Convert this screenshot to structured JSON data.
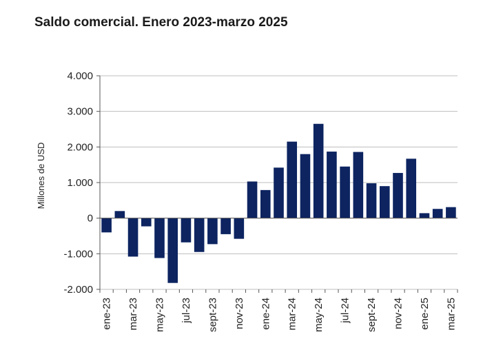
{
  "chart_data": {
    "type": "bar",
    "title": "Saldo comercial. Enero 2023-marzo 2025",
    "xlabel": "",
    "ylabel": "Millones de USD",
    "ylim": [
      -2000,
      4000
    ],
    "yticks": [
      4000,
      3000,
      2000,
      1000,
      0,
      -1000,
      -2000
    ],
    "ytick_labels": [
      "4.000",
      "3.000",
      "2.000",
      "1.000",
      "0",
      "-1.000",
      "-2.000"
    ],
    "categories": [
      "ene-23",
      "feb-23",
      "mar-23",
      "abr-23",
      "may-23",
      "jun-23",
      "jul-23",
      "ago-23",
      "sept-23",
      "oct-23",
      "nov-23",
      "dic-23",
      "ene-24",
      "feb-24",
      "mar-24",
      "abr-24",
      "may-24",
      "jun-24",
      "jul-24",
      "ago-24",
      "sept-24",
      "oct-24",
      "nov-24",
      "dic-24",
      "ene-25",
      "feb-25",
      "mar-25"
    ],
    "tick_labels": [
      "ene-23",
      "",
      "mar-23",
      "",
      "may-23",
      "",
      "jul-23",
      "",
      "sept-23",
      "",
      "nov-23",
      "",
      "ene-24",
      "",
      "mar-24",
      "",
      "may-24",
      "",
      "jul-24",
      "",
      "sept-24",
      "",
      "nov-24",
      "",
      "ene-25",
      "",
      "mar-25"
    ],
    "values": [
      -400,
      200,
      -1080,
      -230,
      -1120,
      -1820,
      -680,
      -950,
      -730,
      -450,
      -580,
      1030,
      790,
      1420,
      2150,
      1800,
      2650,
      1870,
      1450,
      1860,
      980,
      900,
      1270,
      1670,
      140,
      260,
      310
    ],
    "bar_color": "#0d2461",
    "grid": true
  }
}
